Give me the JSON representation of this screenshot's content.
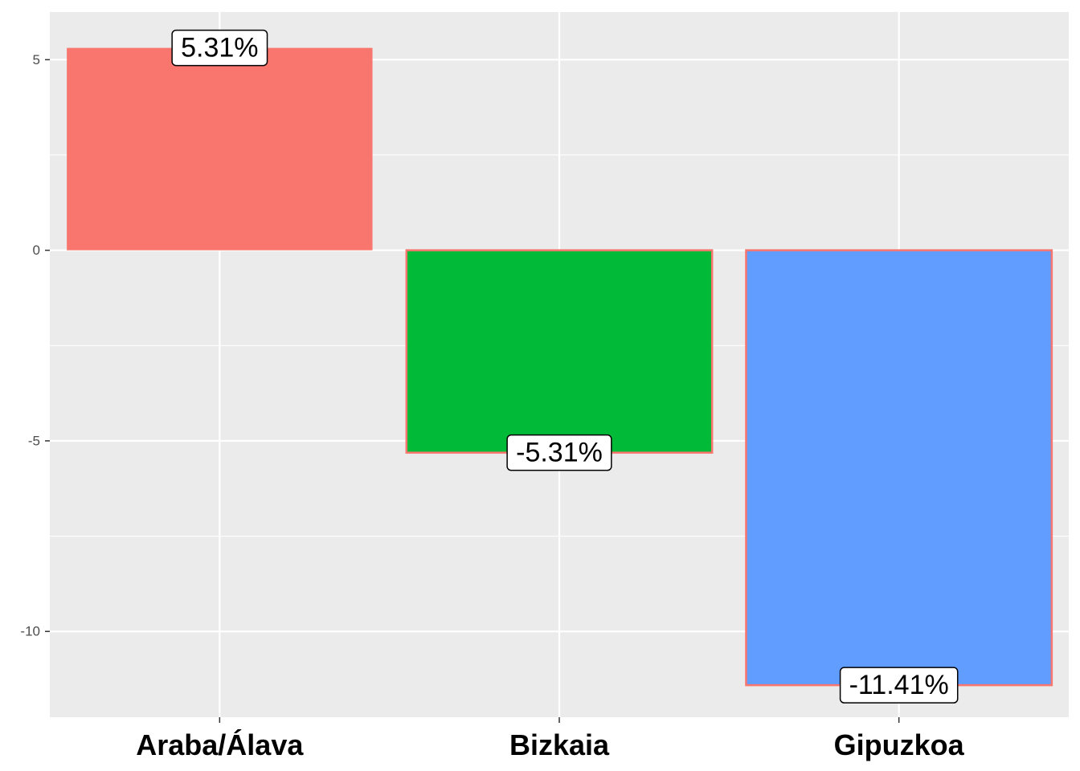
{
  "chart_data": {
    "type": "bar",
    "categories": [
      "Araba/Álava",
      "Bizkaia",
      "Gipuzkoa"
    ],
    "values": [
      5.31,
      -5.31,
      -11.41
    ],
    "data_labels": [
      "5.31%",
      "-5.31%",
      "-11.41%"
    ],
    "colors": [
      "#F8766D",
      "#00BA38",
      "#619CFF"
    ],
    "bar_outline_color": "#F8766D",
    "panel_background": "#EBEBEB",
    "grid": true,
    "ylim": [
      -12.25,
      6.25
    ],
    "yticks": [
      5,
      0,
      -5,
      -10
    ],
    "ytick_labels": [
      "5",
      "0",
      "-5",
      "-10"
    ],
    "title": "",
    "xlabel": "",
    "ylabel": "",
    "legend": "none"
  }
}
